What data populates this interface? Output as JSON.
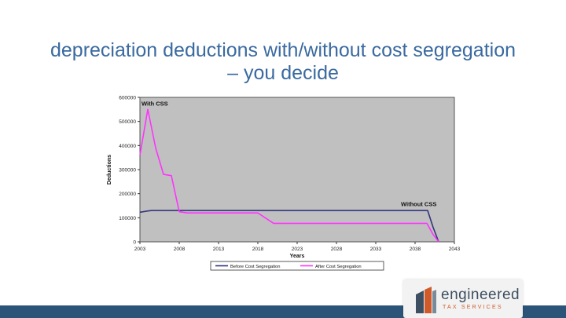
{
  "slide": {
    "title_line1": "depreciation deductions with/without cost segregation",
    "title_line2": "– you decide"
  },
  "logo": {
    "name": "engineered",
    "tagline": "TAX SERVICES",
    "colors": {
      "mark_dark": "#3d4f60",
      "mark_accent": "#d05a2a"
    }
  },
  "colors": {
    "plot_bg": "#c0c0c0",
    "before_line": "#33337f",
    "after_line": "#ff33ff",
    "title": "#3a6aa0",
    "bottom_bar": "#2c5478"
  },
  "chart_data": {
    "type": "line",
    "xlabel": "Years",
    "ylabel": "Deductions",
    "xlim": [
      2003,
      2043
    ],
    "ylim": [
      0,
      600000
    ],
    "xticks": [
      2003,
      2008,
      2013,
      2018,
      2023,
      2028,
      2033,
      2038,
      2043
    ],
    "yticks": [
      0,
      100000,
      200000,
      300000,
      400000,
      500000,
      600000
    ],
    "grid": false,
    "legend_position": "bottom",
    "annotations": [
      {
        "text": "With CSS",
        "x": 2003.2,
        "y": 565000
      },
      {
        "text": "Without CSS",
        "x": 2036.2,
        "y": 148000
      }
    ],
    "series": [
      {
        "name": "Before Cost Segregation",
        "x": [
          2003,
          2004,
          2004.5,
          2039.6,
          2040.3,
          2041
        ],
        "y": [
          123000,
          128000,
          130000,
          130000,
          60000,
          0
        ]
      },
      {
        "name": "After Cost Segregation",
        "x": [
          2003,
          2004,
          2005,
          2006,
          2007,
          2008,
          2009,
          2018,
          2020,
          2039.5,
          2040.3,
          2041
        ],
        "y": [
          360000,
          550000,
          390000,
          280000,
          275000,
          125000,
          120000,
          120000,
          77000,
          77000,
          30000,
          0
        ]
      }
    ]
  }
}
